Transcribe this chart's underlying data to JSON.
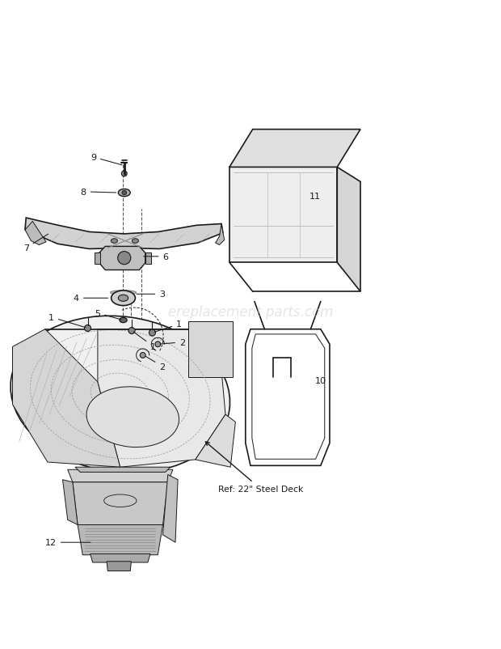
{
  "bg_color": "#ffffff",
  "line_color": "#1a1a1a",
  "label_color": "#1a1a1a",
  "watermark_text": "ereplacement parts.com",
  "watermark_color": "#cccccc",
  "ref_label": "Ref: 22\" Steel Deck",
  "figsize": [
    6.2,
    8.03
  ],
  "dpi": 100
}
